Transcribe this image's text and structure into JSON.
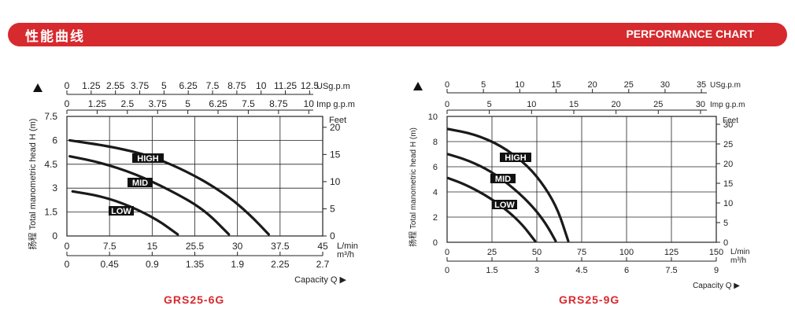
{
  "header": {
    "title_cn": "性能曲线",
    "title_en": "PERFORMANCE CHART"
  },
  "chart_data": [
    {
      "type": "line",
      "model": "GRS25-6G",
      "ylabel": "扬程 Total manometric head H (m)",
      "xlabel": "Capacity Q ▶",
      "x_unit_top1": "USg.p.m",
      "x_unit_top2": "Imp g.p.m",
      "x_unit_lmin": "L/min",
      "x_unit_m3h": "m³/h",
      "y_unit_right": "Feet",
      "xlim": [
        0,
        45
      ],
      "ylim": [
        0,
        7.5
      ],
      "ticks": {
        "y_left": [
          "0",
          "1.5",
          "3",
          "4.5",
          "6",
          "7.5"
        ],
        "y_right": [
          "0",
          "5",
          "10",
          "15",
          "20"
        ],
        "x_lmin": [
          "0",
          "7.5",
          "15",
          "25.5",
          "30",
          "37.5",
          "45"
        ],
        "x_m3h": [
          "0",
          "0.45",
          "0.9",
          "1.35",
          "1.9",
          "2.25",
          "2.7"
        ],
        "x_usgpm": [
          "0",
          "1.25",
          "2.55",
          "3.75",
          "5",
          "6.25",
          "7.5",
          "8.75",
          "10",
          "11.25",
          "12.5"
        ],
        "x_impgpm": [
          "0",
          "1.25",
          "2.5",
          "3.75",
          "5",
          "6.25",
          "7.5",
          "8.75",
          "10"
        ]
      },
      "series": [
        {
          "name": "HIGH",
          "x": [
            0.5,
            8,
            15,
            22,
            28,
            32,
            35.5
          ],
          "y": [
            6.0,
            5.6,
            5.0,
            3.9,
            2.6,
            1.4,
            0.1
          ]
        },
        {
          "name": "MID",
          "x": [
            0.5,
            6,
            12,
            18,
            24,
            28.5
          ],
          "y": [
            5.0,
            4.6,
            3.9,
            2.9,
            1.7,
            0.1
          ]
        },
        {
          "name": "LOW",
          "x": [
            1,
            6,
            11,
            16,
            19.5
          ],
          "y": [
            2.8,
            2.5,
            1.9,
            1.0,
            0.1
          ]
        }
      ]
    },
    {
      "type": "line",
      "model": "GRS25-9G",
      "ylabel": "扬程 Total manometric head H (m)",
      "xlabel": "Capacity Q ▶",
      "x_unit_top1": "USg.p.m",
      "x_unit_top2": "Imp g.p.m",
      "x_unit_lmin": "L/min",
      "x_unit_m3h": "m³/h",
      "y_unit_right": "Feet",
      "xlim": [
        0,
        150
      ],
      "ylim": [
        0,
        10
      ],
      "ticks": {
        "y_left": [
          "0",
          "2",
          "4",
          "6",
          "8",
          "10"
        ],
        "y_right": [
          "0",
          "5",
          "10",
          "15",
          "20",
          "25",
          "30"
        ],
        "x_lmin": [
          "0",
          "25",
          "50",
          "75",
          "100",
          "125",
          "150"
        ],
        "x_m3h": [
          "0",
          "1.5",
          "3",
          "4.5",
          "6",
          "7.5",
          "9"
        ],
        "x_usgpm": [
          "0",
          "5",
          "10",
          "15",
          "20",
          "25",
          "30",
          "35"
        ],
        "x_impgpm": [
          "0",
          "5",
          "10",
          "15",
          "20",
          "25",
          "30"
        ]
      },
      "series": [
        {
          "name": "HIGH",
          "x": [
            0.5,
            15,
            30,
            45,
            55,
            62,
            67.5
          ],
          "y": [
            9.0,
            8.6,
            7.7,
            6.1,
            4.3,
            2.5,
            0.1
          ]
        },
        {
          "name": "MID",
          "x": [
            0.5,
            12,
            25,
            38,
            48,
            55,
            60.5
          ],
          "y": [
            7.0,
            6.5,
            5.6,
            4.2,
            2.8,
            1.5,
            0.1
          ]
        },
        {
          "name": "LOW",
          "x": [
            0.5,
            10,
            22,
            33,
            42,
            49
          ],
          "y": [
            5.1,
            4.6,
            3.7,
            2.6,
            1.4,
            0.1
          ]
        }
      ]
    }
  ]
}
